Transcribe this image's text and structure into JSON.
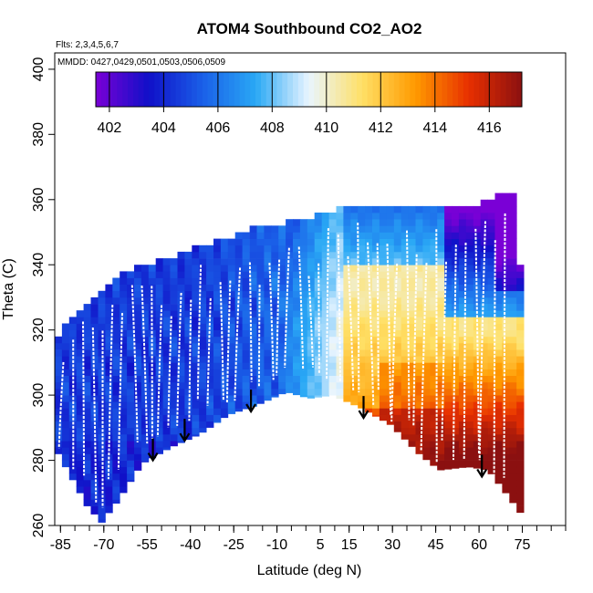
{
  "chart_data": {
    "type": "heatmap",
    "title": "ATOM4 Southbound CO2_AO2",
    "flights_note": "Flts: 2,3,4,5,6,7",
    "dates_note": "MMDD: 0427,0429,0501,0503,0506,0509",
    "xlabel": "Latitude (deg N)",
    "ylabel": "Theta (C)",
    "xlim": [
      -87,
      90
    ],
    "ylim": [
      260,
      405
    ],
    "x_ticks": [
      -85,
      -70,
      -55,
      -40,
      -25,
      -10,
      5,
      15,
      30,
      45,
      60,
      75
    ],
    "y_ticks": [
      260,
      280,
      300,
      320,
      340,
      360,
      380,
      400
    ],
    "colorbar": {
      "min": 401.5,
      "max": 417.2,
      "ticks": [
        402,
        404,
        406,
        408,
        410,
        412,
        414,
        416
      ],
      "colors": [
        "#7a00d6",
        "#1010c8",
        "#1a5fe8",
        "#29a8f5",
        "#e9f5ff",
        "#ffe066",
        "#ff9a00",
        "#e83000",
        "#8b1010"
      ]
    },
    "top_envelope": [
      [
        -87,
        318
      ],
      [
        -83,
        322
      ],
      [
        -78,
        327
      ],
      [
        -72,
        332
      ],
      [
        -62,
        338
      ],
      [
        -50,
        341
      ],
      [
        -40,
        344
      ],
      [
        -30,
        347
      ],
      [
        -18,
        351
      ],
      [
        -8,
        352
      ],
      [
        5,
        355
      ],
      [
        15,
        357
      ],
      [
        30,
        357
      ],
      [
        45,
        356
      ],
      [
        58,
        358
      ],
      [
        68,
        361
      ],
      [
        72,
        362
      ],
      [
        73,
        340
      ]
    ],
    "bottom_envelope": [
      [
        -87,
        282
      ],
      [
        -82,
        274
      ],
      [
        -77,
        266
      ],
      [
        -72,
        261
      ],
      [
        -66,
        268
      ],
      [
        -58,
        279
      ],
      [
        -48,
        284
      ],
      [
        -38,
        288
      ],
      [
        -28,
        294
      ],
      [
        -18,
        297
      ],
      [
        -8,
        301
      ],
      [
        0,
        299
      ],
      [
        8,
        300
      ],
      [
        18,
        296
      ],
      [
        28,
        291
      ],
      [
        38,
        282
      ],
      [
        45,
        277
      ],
      [
        55,
        278
      ],
      [
        62,
        277
      ],
      [
        68,
        270
      ],
      [
        73,
        264
      ]
    ],
    "surface_arrows": [
      {
        "lat": -53,
        "theta": 280
      },
      {
        "lat": -42,
        "theta": 286
      },
      {
        "lat": -19,
        "theta": 295
      },
      {
        "lat": 20,
        "theta": 293
      },
      {
        "lat": 61,
        "theta": 275
      }
    ]
  }
}
